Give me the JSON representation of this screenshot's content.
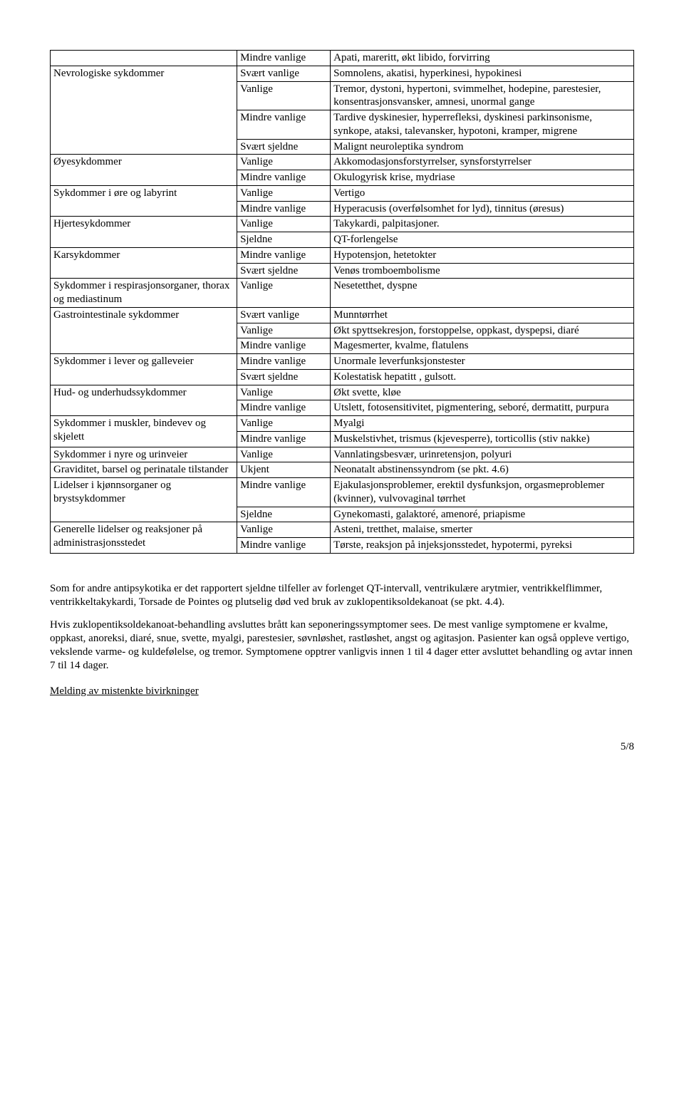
{
  "table": {
    "rows": [
      [
        "",
        "Mindre vanlige",
        "Apati, mareritt, økt libido, forvirring"
      ],
      [
        "Nevrologiske sykdommer",
        "Svært vanlige",
        "Somnolens, akatisi, hyperkinesi, hypokinesi"
      ],
      [
        "",
        "Vanlige",
        "Tremor, dystoni, hypertoni, svimmelhet, hodepine, parestesier, konsentrasjonsvansker, amnesi, unormal gange"
      ],
      [
        "",
        "Mindre vanlige",
        "Tardive dyskinesier, hyperrefleksi, dyskinesi parkinsonisme, synkope, ataksi, talevansker, hypotoni, kramper, migrene"
      ],
      [
        "",
        "Svært sjeldne",
        "Malignt neuroleptika syndrom"
      ],
      [
        "Øyesykdommer",
        "Vanlige",
        "Akkomodasjonsforstyrrelser, synsforstyrrelser"
      ],
      [
        "",
        "Mindre vanlige",
        "Okulogyrisk krise, mydriase"
      ],
      [
        "Sykdommer i øre og labyrint",
        "Vanlige",
        "Vertigo"
      ],
      [
        "",
        "Mindre vanlige",
        "Hyperacusis (overfølsomhet for lyd), tinnitus (øresus)"
      ],
      [
        "Hjertesykdommer",
        "Vanlige",
        "Takykardi, palpitasjoner."
      ],
      [
        "",
        "Sjeldne",
        "QT-forlengelse"
      ],
      [
        "Karsykdommer",
        "Mindre vanlige",
        "Hypotensjon, hetetokter"
      ],
      [
        "",
        "Svært sjeldne",
        "Venøs tromboembolisme"
      ],
      [
        "Sykdommer i respirasjonsorganer, thorax og mediastinum",
        "Vanlige",
        "Nesetetthet, dyspne"
      ],
      [
        "Gastrointestinale sykdommer",
        "Svært vanlige",
        "Munntørrhet"
      ],
      [
        "",
        "Vanlige",
        "Økt spyttsekresjon, forstoppelse, oppkast, dyspepsi, diaré"
      ],
      [
        "",
        "Mindre vanlige",
        "Magesmerter, kvalme, flatulens"
      ],
      [
        "Sykdommer i lever og galleveier",
        "Mindre vanlige",
        "Unormale leverfunksjonstester"
      ],
      [
        "",
        "Svært sjeldne",
        "Kolestatisk hepatitt , gulsott."
      ],
      [
        "Hud- og underhudssykdommer",
        "Vanlige",
        "Økt svette, kløe"
      ],
      [
        "",
        "Mindre vanlige",
        "Utslett, fotosensitivitet, pigmentering, seboré, dermatitt, purpura"
      ],
      [
        "Sykdommer i muskler, bindevev og skjelett",
        "Vanlige",
        "Myalgi"
      ],
      [
        "",
        "Mindre vanlige",
        "Muskelstivhet, trismus (kjevesperre), torticollis (stiv nakke)"
      ],
      [
        "Sykdommer i nyre og urinveier",
        "Vanlige",
        "Vannlatingsbesvær, urinretensjon, polyuri"
      ],
      [
        "Graviditet, barsel og perinatale tilstander",
        "Ukjent",
        "Neonatalt abstinenssyndrom (se pkt. 4.6)"
      ],
      [
        "Lidelser i kjønnsorganer og brystsykdommer",
        "Mindre vanlige",
        "Ejakulasjonsproblemer, erektil dysfunksjon, orgasmeproblemer (kvinner), vulvovaginal tørrhet"
      ],
      [
        "",
        "Sjeldne",
        "Gynekomasti, galaktoré, amenoré, priapisme"
      ],
      [
        "Generelle lidelser og reaksjoner på administrasjonsstedet",
        "Vanlige",
        "Asteni, tretthet, malaise, smerter"
      ],
      [
        "",
        "Mindre vanlige",
        "Tørste, reaksjon på injeksjonsstedet, hypotermi, pyreksi"
      ]
    ],
    "rowspans": {
      "1": 4,
      "5": 2,
      "7": 2,
      "9": 2,
      "11": 2,
      "14": 3,
      "17": 2,
      "19": 2,
      "21": 2,
      "25": 2,
      "27": 2
    }
  },
  "paragraphs": {
    "p1": "Som for andre antipsykotika er det rapportert sjeldne tilfeller av forlenget QT-intervall, ventrikulære arytmier, ventrikkelflimmer, ventrikkeltakykardi, Torsade de Pointes og plutselig død ved bruk av zuklopentiksoldekanoat (se pkt. 4.4).",
    "p2": "Hvis zuklopentiksoldekanoat-behandling avsluttes brått kan seponeringssymptomer sees. De mest vanlige symptomene er kvalme, oppkast, anoreksi, diaré, snue, svette, myalgi, parestesier, søvnløshet, rastløshet, angst og agitasjon. Pasienter kan også oppleve vertigo, vekslende varme- og kuldefølelse, og tremor. Symptomene opptrer vanligvis innen 1 til 4 dager etter avsluttet behandling og avtar innen 7 til 14 dager.",
    "p3": "Melding av mistenkte bivirkninger"
  },
  "pagenum": "5/8"
}
